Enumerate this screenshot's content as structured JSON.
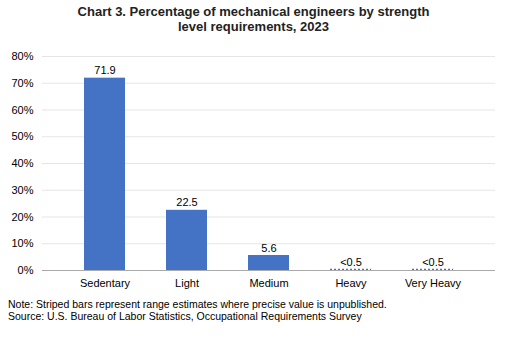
{
  "chart_data": {
    "type": "bar",
    "title": "Chart 3. Percentage of mechanical engineers by strength\nlevel requirements, 2023",
    "categories": [
      "Sedentary",
      "Light",
      "Medium",
      "Heavy",
      "Very Heavy"
    ],
    "values": [
      71.9,
      22.5,
      5.6,
      0.25,
      0.25
    ],
    "value_labels": [
      "71.9",
      "22.5",
      "5.6",
      "<0.5",
      "<0.5"
    ],
    "range_estimate": [
      false,
      false,
      false,
      true,
      true
    ],
    "data_labels": true,
    "color": "#4472c4",
    "ylim": [
      0,
      80
    ],
    "yticks": [
      {
        "value": 0,
        "label": "0%"
      },
      {
        "value": 10,
        "label": "10%"
      },
      {
        "value": 20,
        "label": "20%"
      },
      {
        "value": 30,
        "label": "30%"
      },
      {
        "value": 40,
        "label": "40%"
      },
      {
        "value": 50,
        "label": "50%"
      },
      {
        "value": 60,
        "label": "60%"
      },
      {
        "value": 70,
        "label": "70%"
      },
      {
        "value": 80,
        "label": "80%"
      }
    ],
    "grid": true,
    "annotations": [
      "Note: Striped bars represent range estimates where precise value is unpublished.",
      "Source: U.S. Bureau of Labor Statistics, Occupational Requirements Survey"
    ]
  }
}
